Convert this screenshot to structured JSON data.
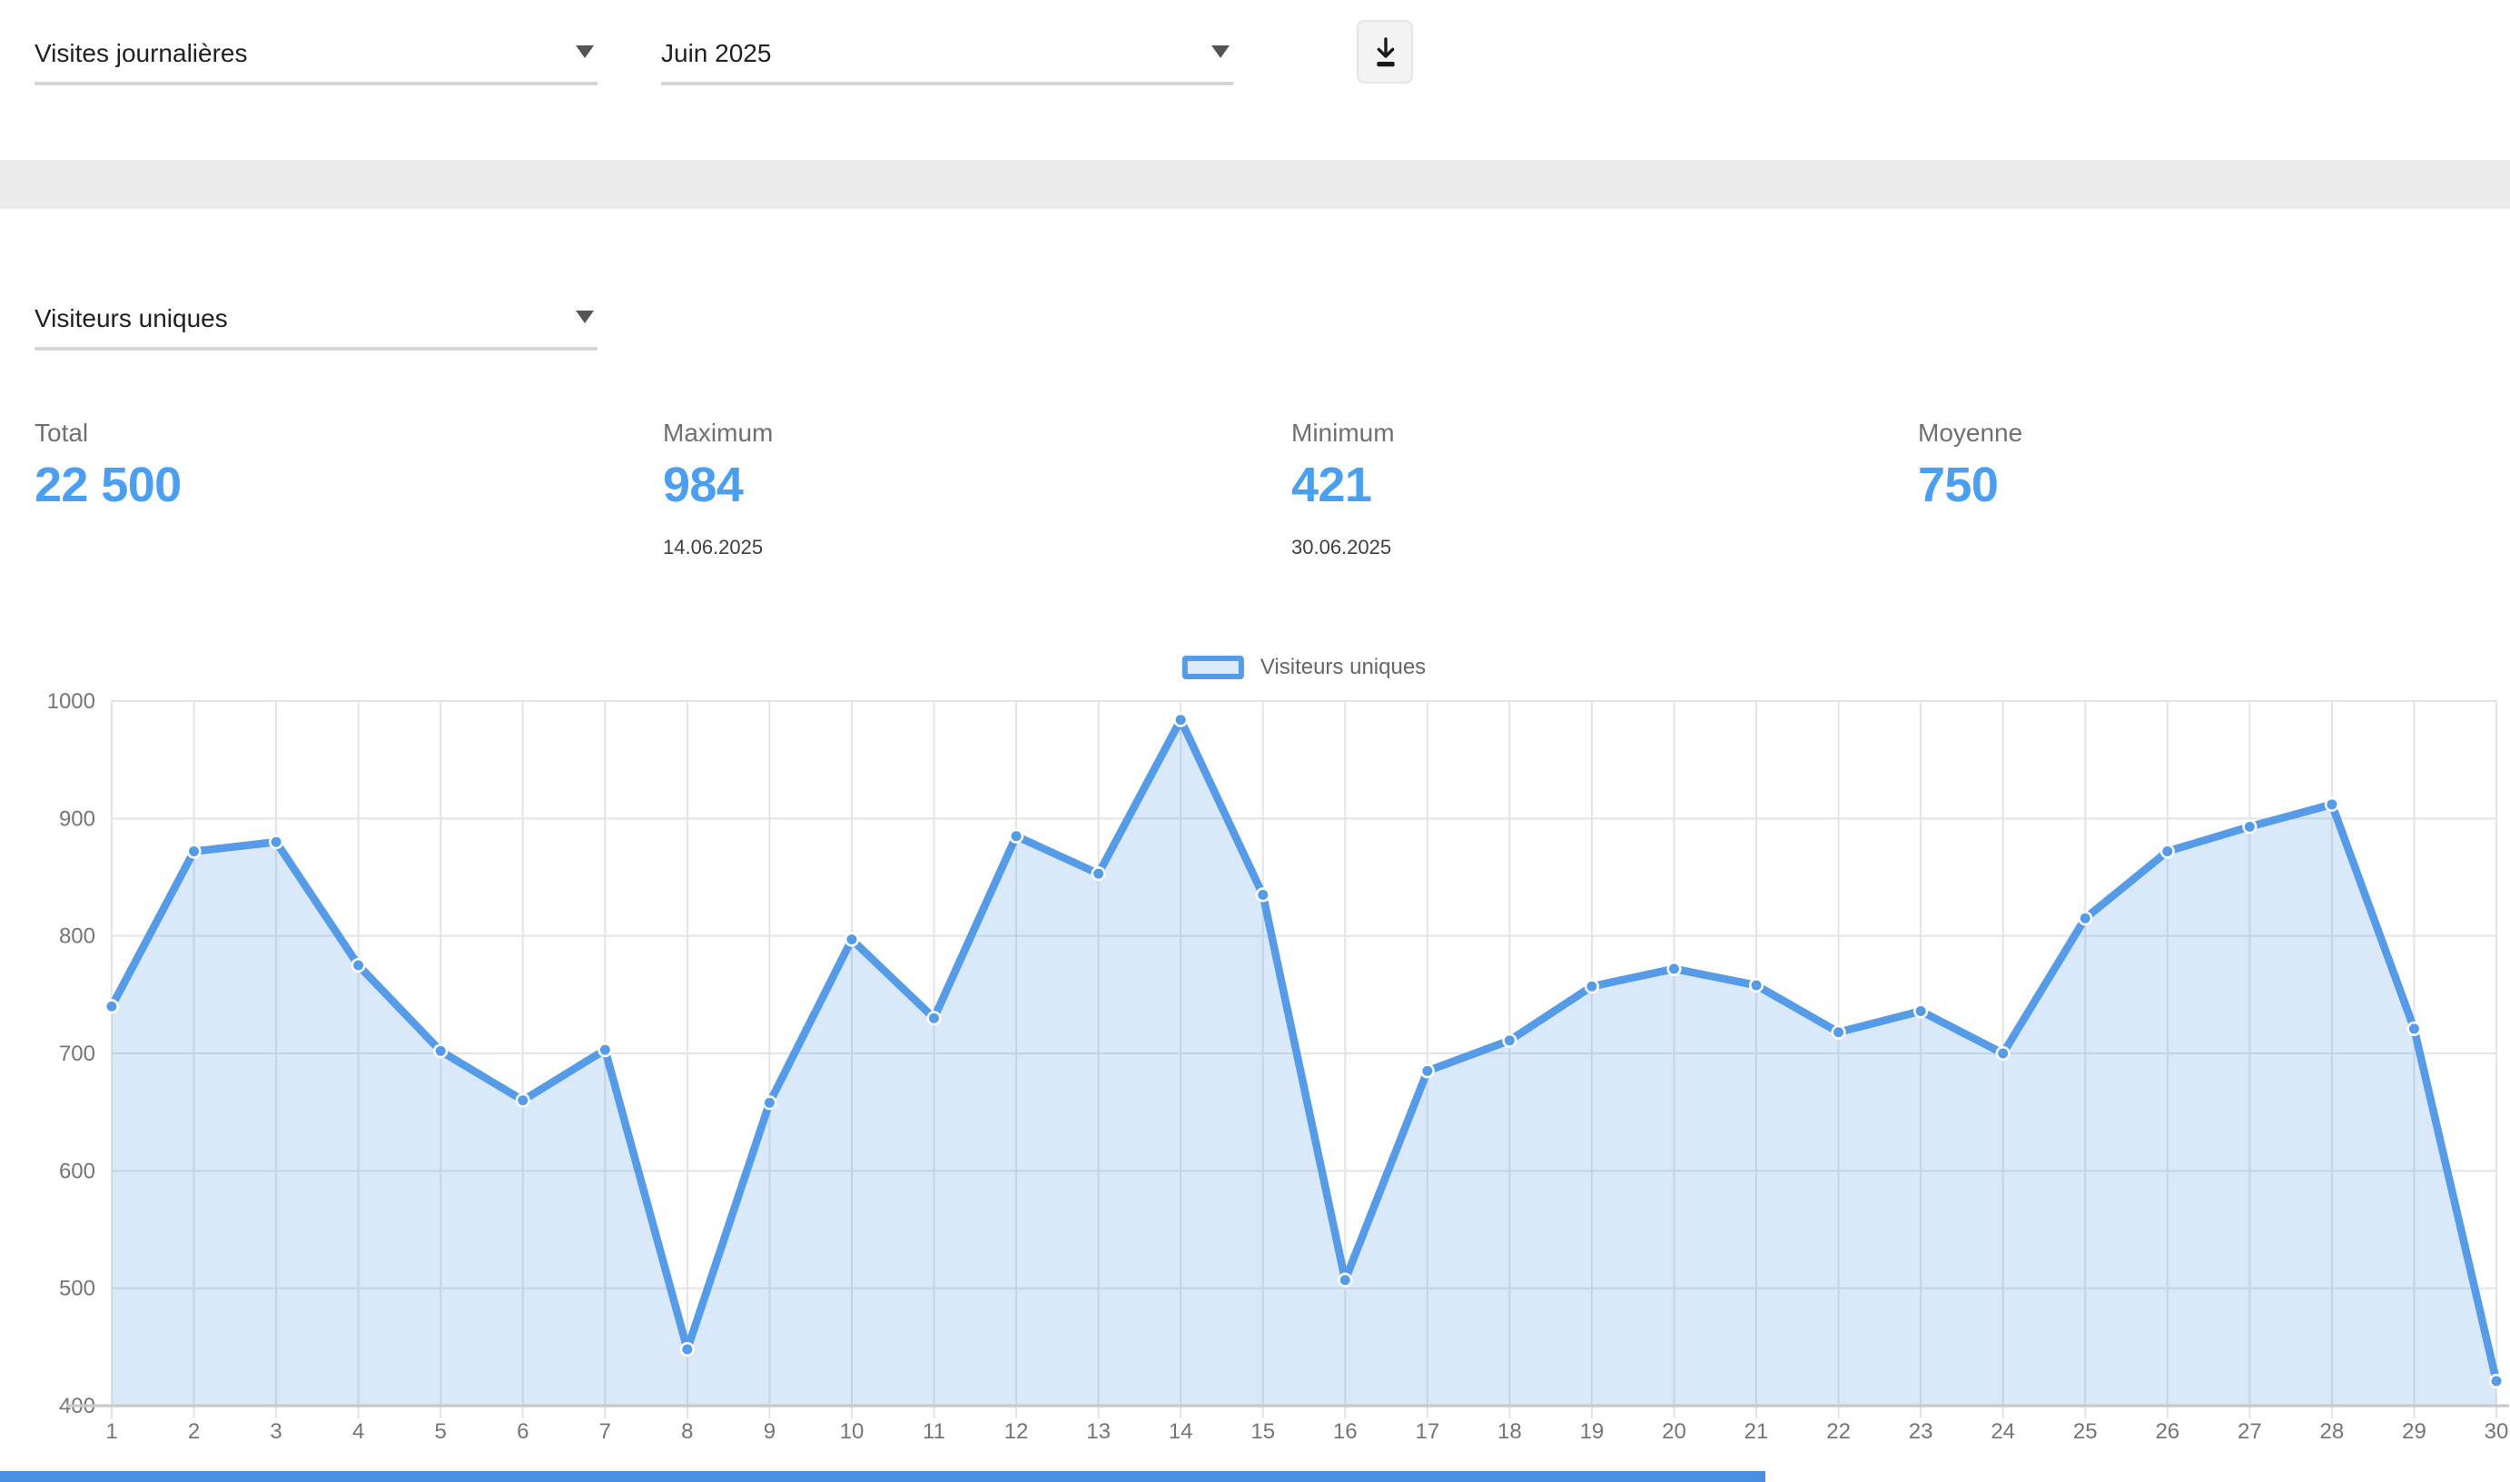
{
  "toolbar": {
    "report_dropdown": {
      "value": "Visites journalières"
    },
    "period_dropdown": {
      "value": "Juin 2025"
    }
  },
  "metric_dropdown": {
    "value": "Visiteurs uniques"
  },
  "stats": [
    {
      "label": "Total",
      "value": "22 500",
      "date": ""
    },
    {
      "label": "Maximum",
      "value": "984",
      "date": "14.06.2025"
    },
    {
      "label": "Minimum",
      "value": "421",
      "date": "30.06.2025"
    },
    {
      "label": "Moyenne",
      "value": "750",
      "date": ""
    }
  ],
  "colors": {
    "accent_blue": "#559be8",
    "area_fill": "#dcebfb",
    "value_blue": "#4b9ff0",
    "band_gray": "#ebebeb",
    "bottom_bar_blue": "#4a90e2",
    "gridline": "#e4e4e4",
    "axis_line": "#c9c9c9",
    "tick_label": "#757575"
  },
  "chart_data": {
    "type": "area",
    "title": "",
    "xlabel": "",
    "ylabel": "",
    "x": [
      1,
      2,
      3,
      4,
      5,
      6,
      7,
      8,
      9,
      10,
      11,
      12,
      13,
      14,
      15,
      16,
      17,
      18,
      19,
      20,
      21,
      22,
      23,
      24,
      25,
      26,
      27,
      28,
      29,
      30
    ],
    "series": [
      {
        "name": "Visiteurs uniques",
        "values": [
          740,
          872,
          880,
          775,
          702,
          660,
          703,
          448,
          658,
          797,
          730,
          885,
          853,
          984,
          835,
          507,
          685,
          711,
          757,
          772,
          758,
          718,
          736,
          700,
          815,
          872,
          893,
          912,
          721,
          421
        ]
      }
    ],
    "ylim": [
      400,
      1000
    ],
    "ytick_step": 100,
    "grid": true,
    "legend_position": "top-center"
  }
}
